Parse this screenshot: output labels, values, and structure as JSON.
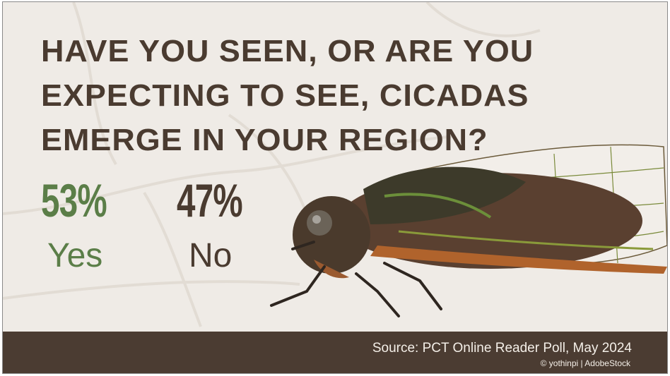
{
  "title": {
    "lines": [
      "HAVE YOU SEEN, OR ARE YOU",
      "EXPECTING TO SEE, CICADAS",
      "EMERGE IN YOUR REGION?"
    ]
  },
  "results": [
    {
      "percent": "53%",
      "label": "Yes",
      "value": 53,
      "color": "#5b7e48"
    },
    {
      "percent": "47%",
      "label": "No",
      "value": 47,
      "color": "#4a3b30"
    }
  ],
  "footer": {
    "source": "Source: PCT Online Reader Poll, May 2024",
    "credit": "© yothinpi | AdobeStock"
  },
  "colors": {
    "background": "#efebe6",
    "footer": "#4b3c32",
    "title": "#4a3b30"
  },
  "image": "cicada-photo"
}
